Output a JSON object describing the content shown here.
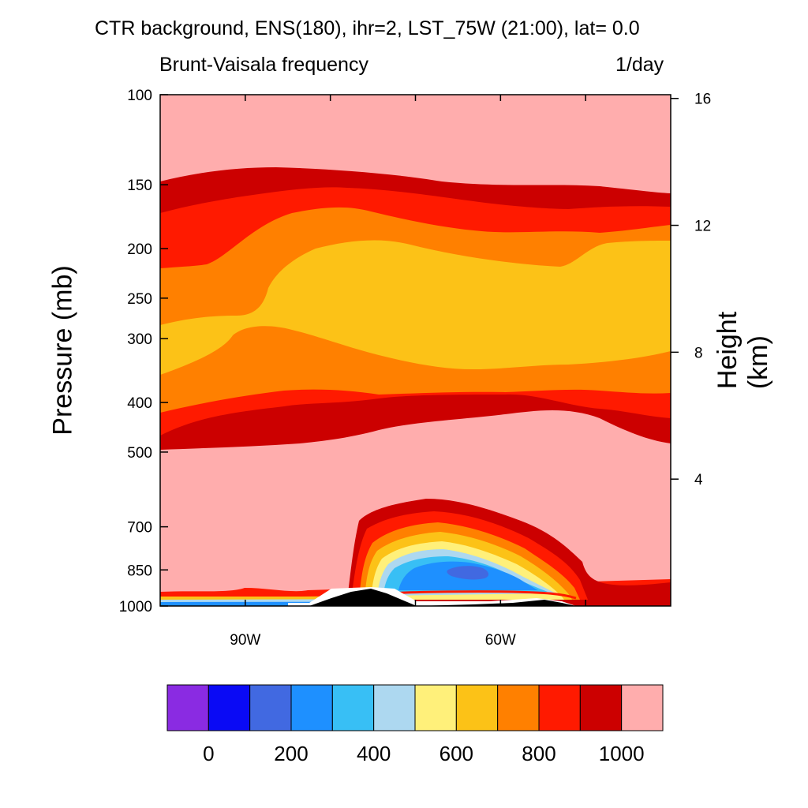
{
  "chart_data": {
    "type": "heatmap",
    "title": "CTR background, ENS(180), ihr=2, LST_75W (21:00), lat=  0.0",
    "subtitle_left": "Brunt-Vaisala frequency",
    "subtitle_right": "1/day",
    "ylabel": "Pressure (mb)",
    "ylabel_right": "Height (km)",
    "x_ticks": [
      {
        "value": 90,
        "label": "90W"
      },
      {
        "value": 60,
        "label": "60W"
      }
    ],
    "xlim": [
      100,
      40
    ],
    "y_ticks": [
      {
        "value": 100,
        "label": "100"
      },
      {
        "value": 150,
        "label": "150"
      },
      {
        "value": 200,
        "label": "200"
      },
      {
        "value": 250,
        "label": "250"
      },
      {
        "value": 300,
        "label": "300"
      },
      {
        "value": 400,
        "label": "400"
      },
      {
        "value": 500,
        "label": "500"
      },
      {
        "value": 700,
        "label": "700"
      },
      {
        "value": 850,
        "label": "850"
      },
      {
        "value": 1000,
        "label": "1000"
      }
    ],
    "ylim": [
      1000,
      100
    ],
    "y_scale": "log",
    "y_right_ticks": [
      {
        "value": 16,
        "label": "16"
      },
      {
        "value": 12,
        "label": "12"
      },
      {
        "value": 8,
        "label": "8"
      },
      {
        "value": 4,
        "label": "4"
      }
    ],
    "colorbar": {
      "colors": [
        "#8a2be2",
        "#0a0af5",
        "#4169e1",
        "#1e90ff",
        "#38bff5",
        "#add8f0",
        "#fff07a",
        "#fcc217",
        "#ff8000",
        "#ff1a00",
        "#cc0000",
        "#ffadad"
      ],
      "labels": [
        {
          "after_index": 0,
          "text": "0"
        },
        {
          "after_index": 2,
          "text": "200"
        },
        {
          "after_index": 4,
          "text": "400"
        },
        {
          "after_index": 6,
          "text": "600"
        },
        {
          "after_index": 8,
          "text": "800"
        },
        {
          "after_index": 10,
          "text": "1000"
        }
      ]
    }
  }
}
